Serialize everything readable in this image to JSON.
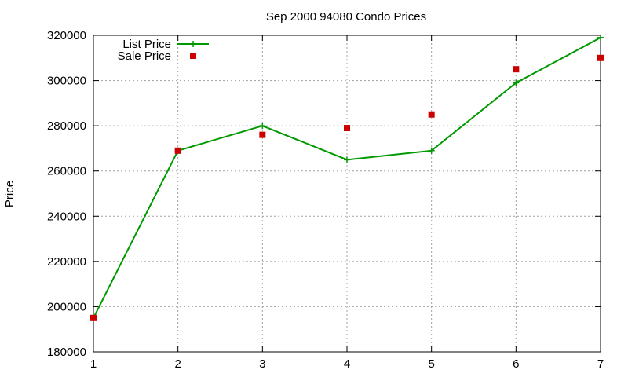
{
  "chart_data": {
    "type": "line",
    "title": "Sep 2000 94080 Condo Prices",
    "xlabel": "",
    "ylabel": "Price",
    "xlim": [
      1,
      7
    ],
    "ylim": [
      180000,
      320000
    ],
    "x_ticks": [
      "1",
      "2",
      "3",
      "4",
      "5",
      "6",
      "7"
    ],
    "y_ticks": [
      "180000",
      "200000",
      "220000",
      "240000",
      "260000",
      "280000",
      "300000",
      "320000"
    ],
    "grid": true,
    "legend_position": "top-left",
    "series": [
      {
        "name": "List Price",
        "style": "line+plus",
        "color": "#009900",
        "x": [
          1,
          2,
          3,
          4,
          5,
          6,
          7
        ],
        "values": [
          195000,
          269000,
          280000,
          265000,
          269000,
          299000,
          319000
        ]
      },
      {
        "name": "Sale Price",
        "style": "square-points",
        "color": "#cc0000",
        "x": [
          1,
          2,
          3,
          4,
          5,
          6,
          7
        ],
        "values": [
          195000,
          269000,
          276000,
          279000,
          285000,
          305000,
          310000
        ]
      }
    ]
  }
}
